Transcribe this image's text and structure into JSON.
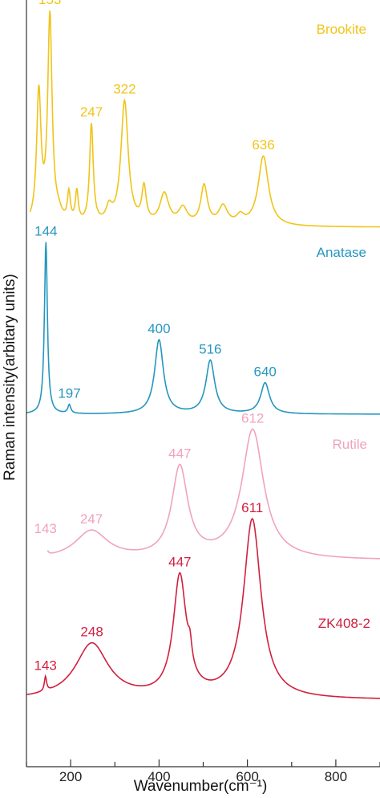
{
  "chart_data": {
    "type": "line",
    "title": "",
    "xlabel": "Wavenumber(cm⁻¹)",
    "ylabel": "Raman intensity(arbitary units)",
    "xlim": [
      100,
      900
    ],
    "x_ticks": [
      200,
      400,
      600,
      800
    ],
    "x_tick_labels": [
      "200",
      "400",
      "600",
      "800"
    ],
    "grid": false,
    "series": [
      {
        "name": "Brookite",
        "color": "#f0c419",
        "peaks": [
          {
            "x": 128,
            "h": 0.63,
            "w": 6
          },
          {
            "x": 153,
            "h": 1.0,
            "w": 6
          },
          {
            "x": 172,
            "h": 0.04,
            "w": 10
          },
          {
            "x": 196,
            "h": 0.14,
            "w": 4
          },
          {
            "x": 214,
            "h": 0.15,
            "w": 4
          },
          {
            "x": 247,
            "h": 0.48,
            "w": 5
          },
          {
            "x": 287,
            "h": 0.07,
            "w": 8
          },
          {
            "x": 322,
            "h": 0.6,
            "w": 10
          },
          {
            "x": 366,
            "h": 0.17,
            "w": 6
          },
          {
            "x": 412,
            "h": 0.15,
            "w": 12
          },
          {
            "x": 454,
            "h": 0.08,
            "w": 12
          },
          {
            "x": 502,
            "h": 0.19,
            "w": 9
          },
          {
            "x": 545,
            "h": 0.09,
            "w": 12
          },
          {
            "x": 584,
            "h": 0.04,
            "w": 10
          },
          {
            "x": 636,
            "h": 0.34,
            "w": 14
          }
        ],
        "labels": [
          {
            "text": "153",
            "x": 153,
            "y": 1.0
          },
          {
            "text": "247",
            "x": 247,
            "y": 0.48
          },
          {
            "text": "322",
            "x": 322,
            "y": 0.6
          },
          {
            "text": "636",
            "x": 636,
            "y": 0.34
          }
        ]
      },
      {
        "name": "Anatase",
        "color": "#2596be",
        "peaks": [
          {
            "x": 144,
            "h": 1.0,
            "w": 4
          },
          {
            "x": 197,
            "h": 0.05,
            "w": 4
          },
          {
            "x": 400,
            "h": 0.43,
            "w": 12
          },
          {
            "x": 516,
            "h": 0.31,
            "w": 12
          },
          {
            "x": 640,
            "h": 0.18,
            "w": 12
          }
        ],
        "labels": [
          {
            "text": "144",
            "x": 144,
            "y": 1.0
          },
          {
            "text": "197",
            "x": 197,
            "y": 0.05
          },
          {
            "text": "400",
            "x": 400,
            "y": 0.43
          },
          {
            "text": "516",
            "x": 516,
            "y": 0.31
          },
          {
            "text": "640",
            "x": 640,
            "y": 0.18
          }
        ]
      },
      {
        "name": "Rutile",
        "color": "#f0a3bc",
        "peaks": [
          {
            "x": 143,
            "h": 0.12,
            "w": 3
          },
          {
            "x": 247,
            "h": 0.22,
            "w": 45
          },
          {
            "x": 447,
            "h": 0.7,
            "w": 22
          },
          {
            "x": 612,
            "h": 1.0,
            "w": 30
          }
        ],
        "labels": [
          {
            "text": "143",
            "x": 143,
            "y": 0.12
          },
          {
            "text": "247",
            "x": 247,
            "y": 0.22
          },
          {
            "text": "447",
            "x": 447,
            "y": 0.7
          },
          {
            "text": "612",
            "x": 612,
            "y": 1.0
          }
        ]
      },
      {
        "name": "ZK408-2",
        "color": "#d0203f",
        "peaks": [
          {
            "x": 143,
            "h": 0.08,
            "w": 3
          },
          {
            "x": 248,
            "h": 0.31,
            "w": 45
          },
          {
            "x": 447,
            "h": 0.67,
            "w": 18
          },
          {
            "x": 470,
            "h": 0.1,
            "w": 5
          },
          {
            "x": 611,
            "h": 1.0,
            "w": 24
          }
        ],
        "labels": [
          {
            "text": "143",
            "x": 143,
            "y": 0.08
          },
          {
            "text": "248",
            "x": 248,
            "y": 0.31
          },
          {
            "text": "447",
            "x": 447,
            "y": 0.67
          },
          {
            "text": "611",
            "x": 611,
            "y": 1.0
          }
        ]
      }
    ]
  }
}
